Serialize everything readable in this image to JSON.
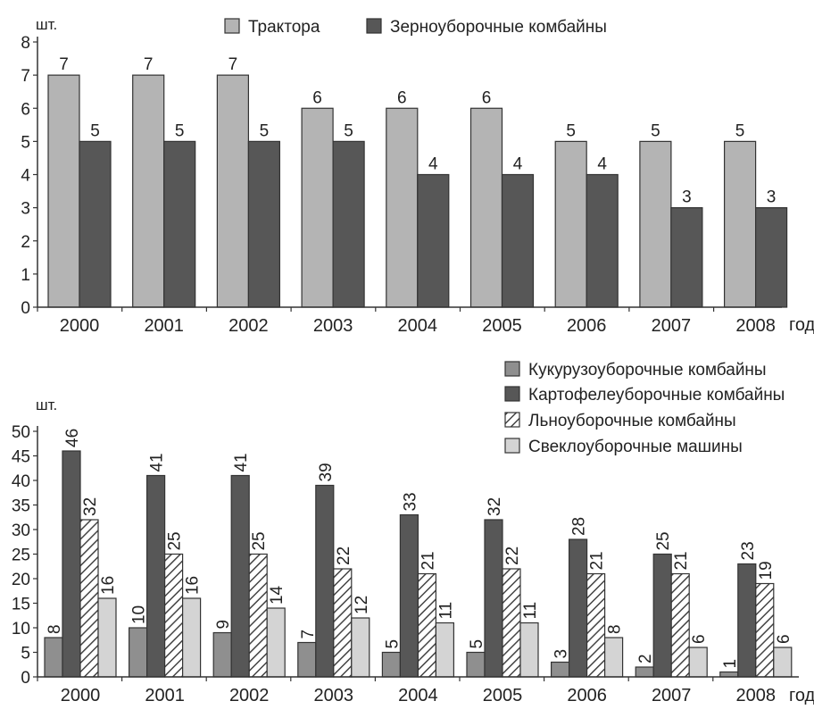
{
  "colors": {
    "light_gray": "#b4b4b4",
    "dark_gray": "#575757",
    "medium_gray": "#8f8f8f",
    "very_light_gray": "#d4d4d4",
    "hatch_fill": "#ffffff",
    "hatch_stroke": "#444444",
    "outline": "#333333"
  },
  "chart_data": [
    {
      "type": "bar",
      "ylabel": "шт.",
      "xlabel": "год",
      "ylim": [
        0,
        8
      ],
      "yticks": [
        0,
        1,
        2,
        3,
        4,
        5,
        6,
        7,
        8
      ],
      "categories": [
        "2000",
        "2001",
        "2002",
        "2003",
        "2004",
        "2005",
        "2006",
        "2007",
        "2008"
      ],
      "legend_position": "top",
      "series": [
        {
          "name": "Трактора",
          "values": [
            7,
            7,
            7,
            6,
            6,
            6,
            5,
            5,
            5
          ],
          "color": "#b4b4b4",
          "pattern": "solid"
        },
        {
          "name": "Зерноуборочные комбайны",
          "values": [
            5,
            5,
            5,
            5,
            4,
            4,
            4,
            3,
            3
          ],
          "color": "#575757",
          "pattern": "solid"
        }
      ],
      "data_labels": true
    },
    {
      "type": "bar",
      "ylabel": "шт.",
      "xlabel": "год",
      "ylim": [
        0,
        50
      ],
      "yticks": [
        0,
        5,
        10,
        15,
        20,
        25,
        30,
        35,
        40,
        45,
        50
      ],
      "categories": [
        "2000",
        "2001",
        "2002",
        "2003",
        "2004",
        "2005",
        "2006",
        "2007",
        "2008"
      ],
      "legend_position": "top-right",
      "series": [
        {
          "name": "Кукурузоуборочные комбайны",
          "values": [
            8,
            10,
            9,
            7,
            5,
            5,
            3,
            2,
            1
          ],
          "color": "#8f8f8f",
          "pattern": "solid"
        },
        {
          "name": "Картофелеуборочные комбайны",
          "values": [
            46,
            41,
            41,
            39,
            33,
            32,
            28,
            25,
            23
          ],
          "color": "#575757",
          "pattern": "solid"
        },
        {
          "name": "Льноуборочные комбайны",
          "values": [
            32,
            25,
            25,
            22,
            21,
            22,
            21,
            21,
            19
          ],
          "color": "#ffffff",
          "pattern": "hatch"
        },
        {
          "name": "Свеклоуборочные машины",
          "values": [
            16,
            16,
            14,
            12,
            11,
            11,
            8,
            6,
            6
          ],
          "color": "#d4d4d4",
          "pattern": "solid"
        }
      ],
      "data_labels": true,
      "data_label_orientation": "vertical"
    }
  ]
}
